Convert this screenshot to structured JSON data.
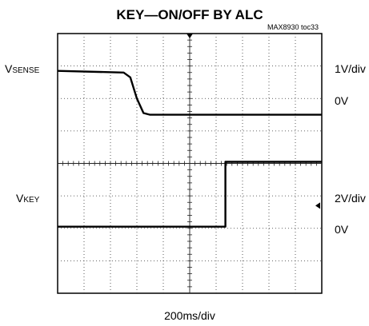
{
  "chart_data": {
    "type": "line",
    "title": "KEY—ON/OFF BY ALC",
    "figure_ref": "MAX8930 toc33",
    "xlabel": "200ms/div",
    "x_unit": "ms",
    "x_per_div": 200,
    "xlim": [
      0,
      2000
    ],
    "y_divisions": 8,
    "grid": true,
    "traces": [
      {
        "name_main": "V",
        "name_sub": "SENSE",
        "scale_label": "1V/div",
        "zero_label": "0V",
        "zero_div": 5.5,
        "volts_per_div": 1,
        "points": [
          [
            0,
            1.35
          ],
          [
            500,
            1.3
          ],
          [
            550,
            1.15
          ],
          [
            600,
            0.5
          ],
          [
            650,
            0.05
          ],
          [
            700,
            0.0
          ],
          [
            2000,
            0.0
          ]
        ]
      },
      {
        "name_main": "V",
        "name_sub": "KEY",
        "scale_label": "2V/div",
        "zero_label": "0V",
        "zero_div": 2.05,
        "volts_per_div": 2,
        "points": [
          [
            0,
            0
          ],
          [
            1270,
            0
          ],
          [
            1270,
            4.0
          ],
          [
            2000,
            4.0
          ]
        ]
      }
    ]
  }
}
